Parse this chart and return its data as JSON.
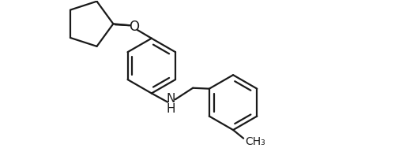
{
  "background_color": "#ffffff",
  "line_color": "#1a1a1a",
  "line_width": 1.6,
  "font_size": 11,
  "figsize": [
    5.0,
    1.88
  ],
  "dpi": 100,
  "xlim": [
    0,
    10
  ],
  "ylim": [
    0,
    3.76
  ]
}
